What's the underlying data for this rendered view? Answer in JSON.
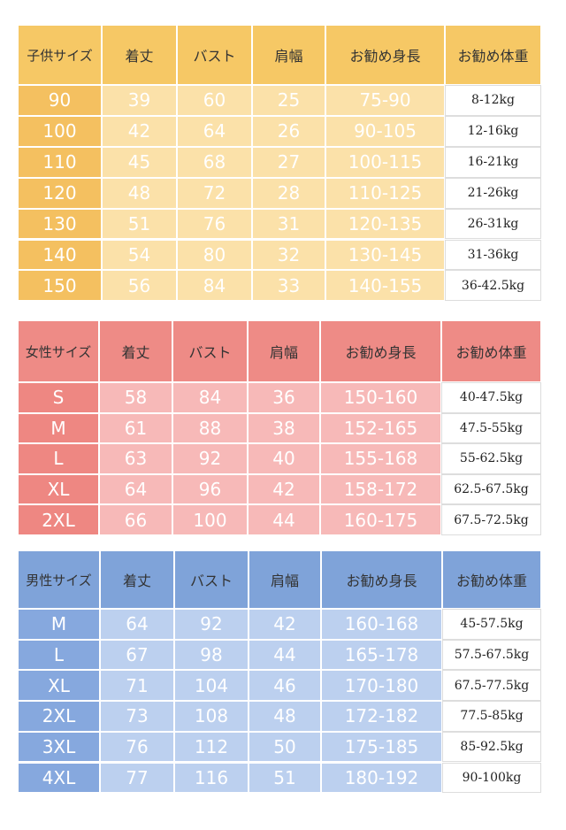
{
  "tables": [
    {
      "header": [
        "子供サイズ",
        "着丈",
        "バスト",
        "肩幅",
        "お勧め身長",
        "お勧め体重"
      ],
      "rows": [
        [
          "90",
          "39",
          "60",
          "25",
          "75-90",
          "8-12kg"
        ],
        [
          "100",
          "42",
          "64",
          "26",
          "90-105",
          "12-16kg"
        ],
        [
          "110",
          "45",
          "68",
          "27",
          "100-115",
          "16-21kg"
        ],
        [
          "120",
          "48",
          "72",
          "28",
          "110-125",
          "21-26kg"
        ],
        [
          "130",
          "51",
          "76",
          "31",
          "120-135",
          "26-31kg"
        ],
        [
          "140",
          "54",
          "80",
          "32",
          "130-145",
          "31-36kg"
        ],
        [
          "150",
          "56",
          "84",
          "33",
          "140-155",
          "36-42.5kg"
        ]
      ]
    },
    {
      "header": [
        "女性サイズ",
        "着丈",
        "バスト",
        "肩幅",
        "お勧め身長",
        "お勧め体重"
      ],
      "rows": [
        [
          "S",
          "58",
          "84",
          "36",
          "150-160",
          "40-47.5kg"
        ],
        [
          "M",
          "61",
          "88",
          "38",
          "152-165",
          "47.5-55kg"
        ],
        [
          "L",
          "63",
          "92",
          "40",
          "155-168",
          "55-62.5kg"
        ],
        [
          "XL",
          "64",
          "96",
          "42",
          "158-172",
          "62.5-67.5kg"
        ],
        [
          "2XL",
          "66",
          "100",
          "44",
          "160-175",
          "67.5-72.5kg"
        ]
      ]
    },
    {
      "header": [
        "男性サイズ",
        "着丈",
        "バスト",
        "肩幅",
        "お勧め身長",
        "お勧め体重"
      ],
      "rows": [
        [
          "M",
          "64",
          "92",
          "42",
          "160-168",
          "45-57.5kg"
        ],
        [
          "L",
          "67",
          "98",
          "44",
          "165-178",
          "57.5-67.5kg"
        ],
        [
          "XL",
          "71",
          "104",
          "46",
          "170-180",
          "67.5-77.5kg"
        ],
        [
          "2XL",
          "73",
          "108",
          "48",
          "172-182",
          "77.5-85kg"
        ],
        [
          "3XL",
          "76",
          "112",
          "50",
          "175-185",
          "85-92.5kg"
        ],
        [
          "4XL",
          "77",
          "116",
          "51",
          "180-192",
          "90-100kg"
        ]
      ]
    }
  ]
}
